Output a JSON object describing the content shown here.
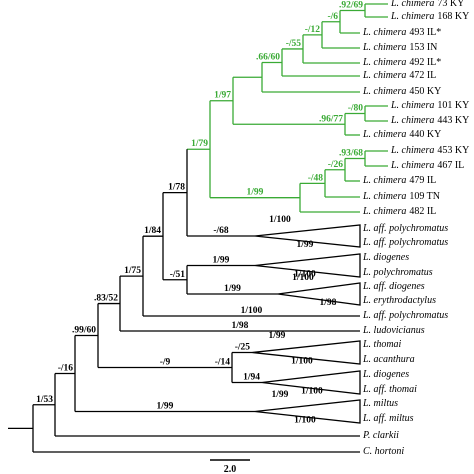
{
  "leaves": [
    {
      "taxon": "L. chimera",
      "locality": "73 KY"
    },
    {
      "taxon": "L. chimera",
      "locality": "168 KY"
    },
    {
      "taxon": "L. chimera",
      "locality": "493 IL*"
    },
    {
      "taxon": "L. chimera",
      "locality": "153 IN"
    },
    {
      "taxon": "L. chimera",
      "locality": "492 IL*"
    },
    {
      "taxon": "L. chimera",
      "locality": "472 IL"
    },
    {
      "taxon": "L. chimera",
      "locality": "450 KY"
    },
    {
      "taxon": "L. chimera",
      "locality": "101 KY"
    },
    {
      "taxon": "L. chimera",
      "locality": "443 KY"
    },
    {
      "taxon": "L. chimera",
      "locality": "440 KY"
    },
    {
      "taxon": "L. chimera",
      "locality": "453 KY"
    },
    {
      "taxon": "L. chimera",
      "locality": "467 IL"
    },
    {
      "taxon": "L. chimera",
      "locality": "479 IL"
    },
    {
      "taxon": "L. chimera",
      "locality": "109 TN"
    },
    {
      "taxon": "L. chimera",
      "locality": "482 IL"
    },
    {
      "taxon": "L. aff. polychromatus"
    },
    {
      "taxon": "L. aff. polychromatus"
    },
    {
      "taxon": "L. diogenes"
    },
    {
      "taxon": "L. polychromatus"
    },
    {
      "taxon": "L. aff. diogenes"
    },
    {
      "taxon": "L. erythrodactylus"
    },
    {
      "taxon": "L. aff. polychromatus"
    },
    {
      "taxon": "L. ludovicianus"
    },
    {
      "taxon": "L. thomai"
    },
    {
      "taxon": "L. acanthura"
    },
    {
      "taxon": "L. diogenes"
    },
    {
      "taxon": "L. aff. thomai"
    },
    {
      "taxon": "L. miltus"
    },
    {
      "taxon": "L. aff. miltus"
    },
    {
      "taxon": "P. clarkii"
    },
    {
      "taxon": "C. hortoni"
    }
  ],
  "support": [
    ".92/69",
    "-/6",
    "-/12",
    "-/55",
    ".66/60",
    "1/97",
    "-/80",
    ".96/77",
    "1/79",
    ".93/68",
    "-/26",
    "-/48",
    "1/99",
    "1/78",
    "-/68",
    "1/100",
    "1/99",
    "1/84",
    "1/99",
    "1/100",
    "-/51",
    "1/75",
    "1/99",
    "1/100",
    "1/98",
    ".83/52",
    "1/100",
    ".99/60",
    "1/98",
    "-/16",
    "1/53",
    "-/25",
    "1/99",
    "1/100",
    "-/14",
    "1/94",
    "1/100",
    "-/9",
    "1/99",
    "1/99",
    "1/100"
  ],
  "scale_bar": "2.0"
}
